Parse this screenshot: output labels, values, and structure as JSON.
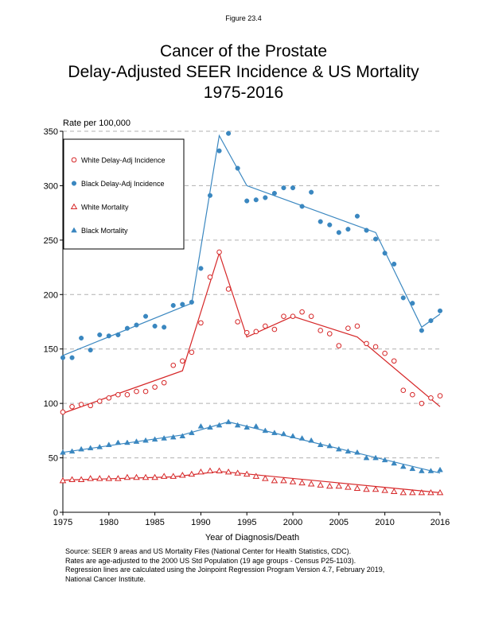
{
  "figure_label": "Figure 23.4",
  "title_lines": [
    "Cancer of the Prostate",
    "Delay-Adjusted SEER Incidence & US Mortality",
    "1975-2016"
  ],
  "footnotes": [
    "Source: SEER 9 areas and US Mortality Files (National Center for Health Statistics, CDC).",
    "Rates are age-adjusted to the 2000 US Std Population (19 age groups - Census P25-1103).",
    "Regression lines are calculated using the Joinpoint Regression Program Version 4.7, February 2019,",
    "National Cancer Institute."
  ],
  "colors": {
    "red": "#d62728",
    "blue": "#3a87c0",
    "grid": "#b0b0b0"
  },
  "chart_data": {
    "type": "scatter",
    "ylabel": "Rate per 100,000",
    "xlabel": "Year of Diagnosis/Death",
    "xlim": [
      1975,
      2016
    ],
    "ylim": [
      0,
      350
    ],
    "x_ticks": [
      1975,
      1980,
      1985,
      1990,
      1995,
      2000,
      2005,
      2010,
      2016
    ],
    "y_ticks": [
      0,
      50,
      100,
      150,
      200,
      250,
      300,
      350
    ],
    "grid": "horizontal dashed",
    "legend_position": "top-left",
    "x": [
      1975,
      1976,
      1977,
      1978,
      1979,
      1980,
      1981,
      1982,
      1983,
      1984,
      1985,
      1986,
      1987,
      1988,
      1989,
      1990,
      1991,
      1992,
      1993,
      1994,
      1995,
      1996,
      1997,
      1998,
      1999,
      2000,
      2001,
      2002,
      2003,
      2004,
      2005,
      2006,
      2007,
      2008,
      2009,
      2010,
      2011,
      2012,
      2013,
      2014,
      2015,
      2016
    ],
    "series": [
      {
        "name": "White Delay-Adj Incidence",
        "color": "red",
        "marker": "open-circle",
        "values": [
          92,
          97,
          99,
          98,
          102,
          105,
          108,
          108,
          111,
          111,
          115,
          119,
          135,
          139,
          147,
          174,
          216,
          239,
          205,
          175,
          165,
          166,
          171,
          168,
          180,
          180,
          184,
          180,
          167,
          164,
          153,
          169,
          171,
          155,
          152,
          146,
          139,
          112,
          108,
          100,
          105,
          107
        ],
        "fit_x": [
          1975,
          1988,
          1992,
          1995,
          2000,
          2007,
          2016
        ],
        "fit_y": [
          91,
          130,
          238,
          161,
          180,
          161,
          97
        ]
      },
      {
        "name": "Black Delay-Adj Incidence",
        "color": "blue",
        "marker": "filled-circle",
        "values": [
          142,
          142,
          160,
          149,
          163,
          162,
          163,
          169,
          172,
          180,
          171,
          170,
          190,
          191,
          193,
          224,
          291,
          332,
          348,
          316,
          286,
          287,
          289,
          293,
          298,
          298,
          281,
          294,
          267,
          264,
          257,
          260,
          272,
          259,
          251,
          238,
          228,
          197,
          192,
          167,
          176,
          185
        ],
        "fit_x": [
          1975,
          1989,
          1992,
          1995,
          2009,
          2014,
          2016
        ],
        "fit_y": [
          144,
          192,
          346,
          300,
          257,
          170,
          182
        ]
      },
      {
        "name": "White Mortality",
        "color": "red",
        "marker": "open-triangle",
        "values": [
          29,
          30,
          30,
          31,
          31,
          31,
          31,
          32,
          32,
          32,
          32,
          33,
          33,
          34,
          35,
          37,
          38,
          38,
          37,
          36,
          35,
          33,
          31,
          29,
          29,
          28,
          27,
          26,
          25,
          24,
          24,
          23,
          22,
          21,
          21,
          20,
          19,
          18,
          18,
          18,
          18,
          18
        ],
        "fit_x": [
          1975,
          1987,
          1992,
          1994,
          2016
        ],
        "fit_y": [
          29.5,
          32.5,
          37.5,
          36,
          18
        ]
      },
      {
        "name": "Black Mortality",
        "color": "blue",
        "marker": "filled-triangle",
        "values": [
          55,
          56,
          58,
          59,
          60,
          62,
          64,
          64,
          65,
          66,
          67,
          68,
          69,
          70,
          73,
          79,
          78,
          80,
          83,
          80,
          78,
          79,
          75,
          73,
          72,
          70,
          68,
          66,
          62,
          61,
          58,
          56,
          55,
          50,
          50,
          48,
          45,
          42,
          40,
          38,
          38,
          39
        ],
        "fit_x": [
          1975,
          1988,
          1993,
          2016
        ],
        "fit_y": [
          55,
          71,
          83,
          36
        ]
      }
    ]
  }
}
